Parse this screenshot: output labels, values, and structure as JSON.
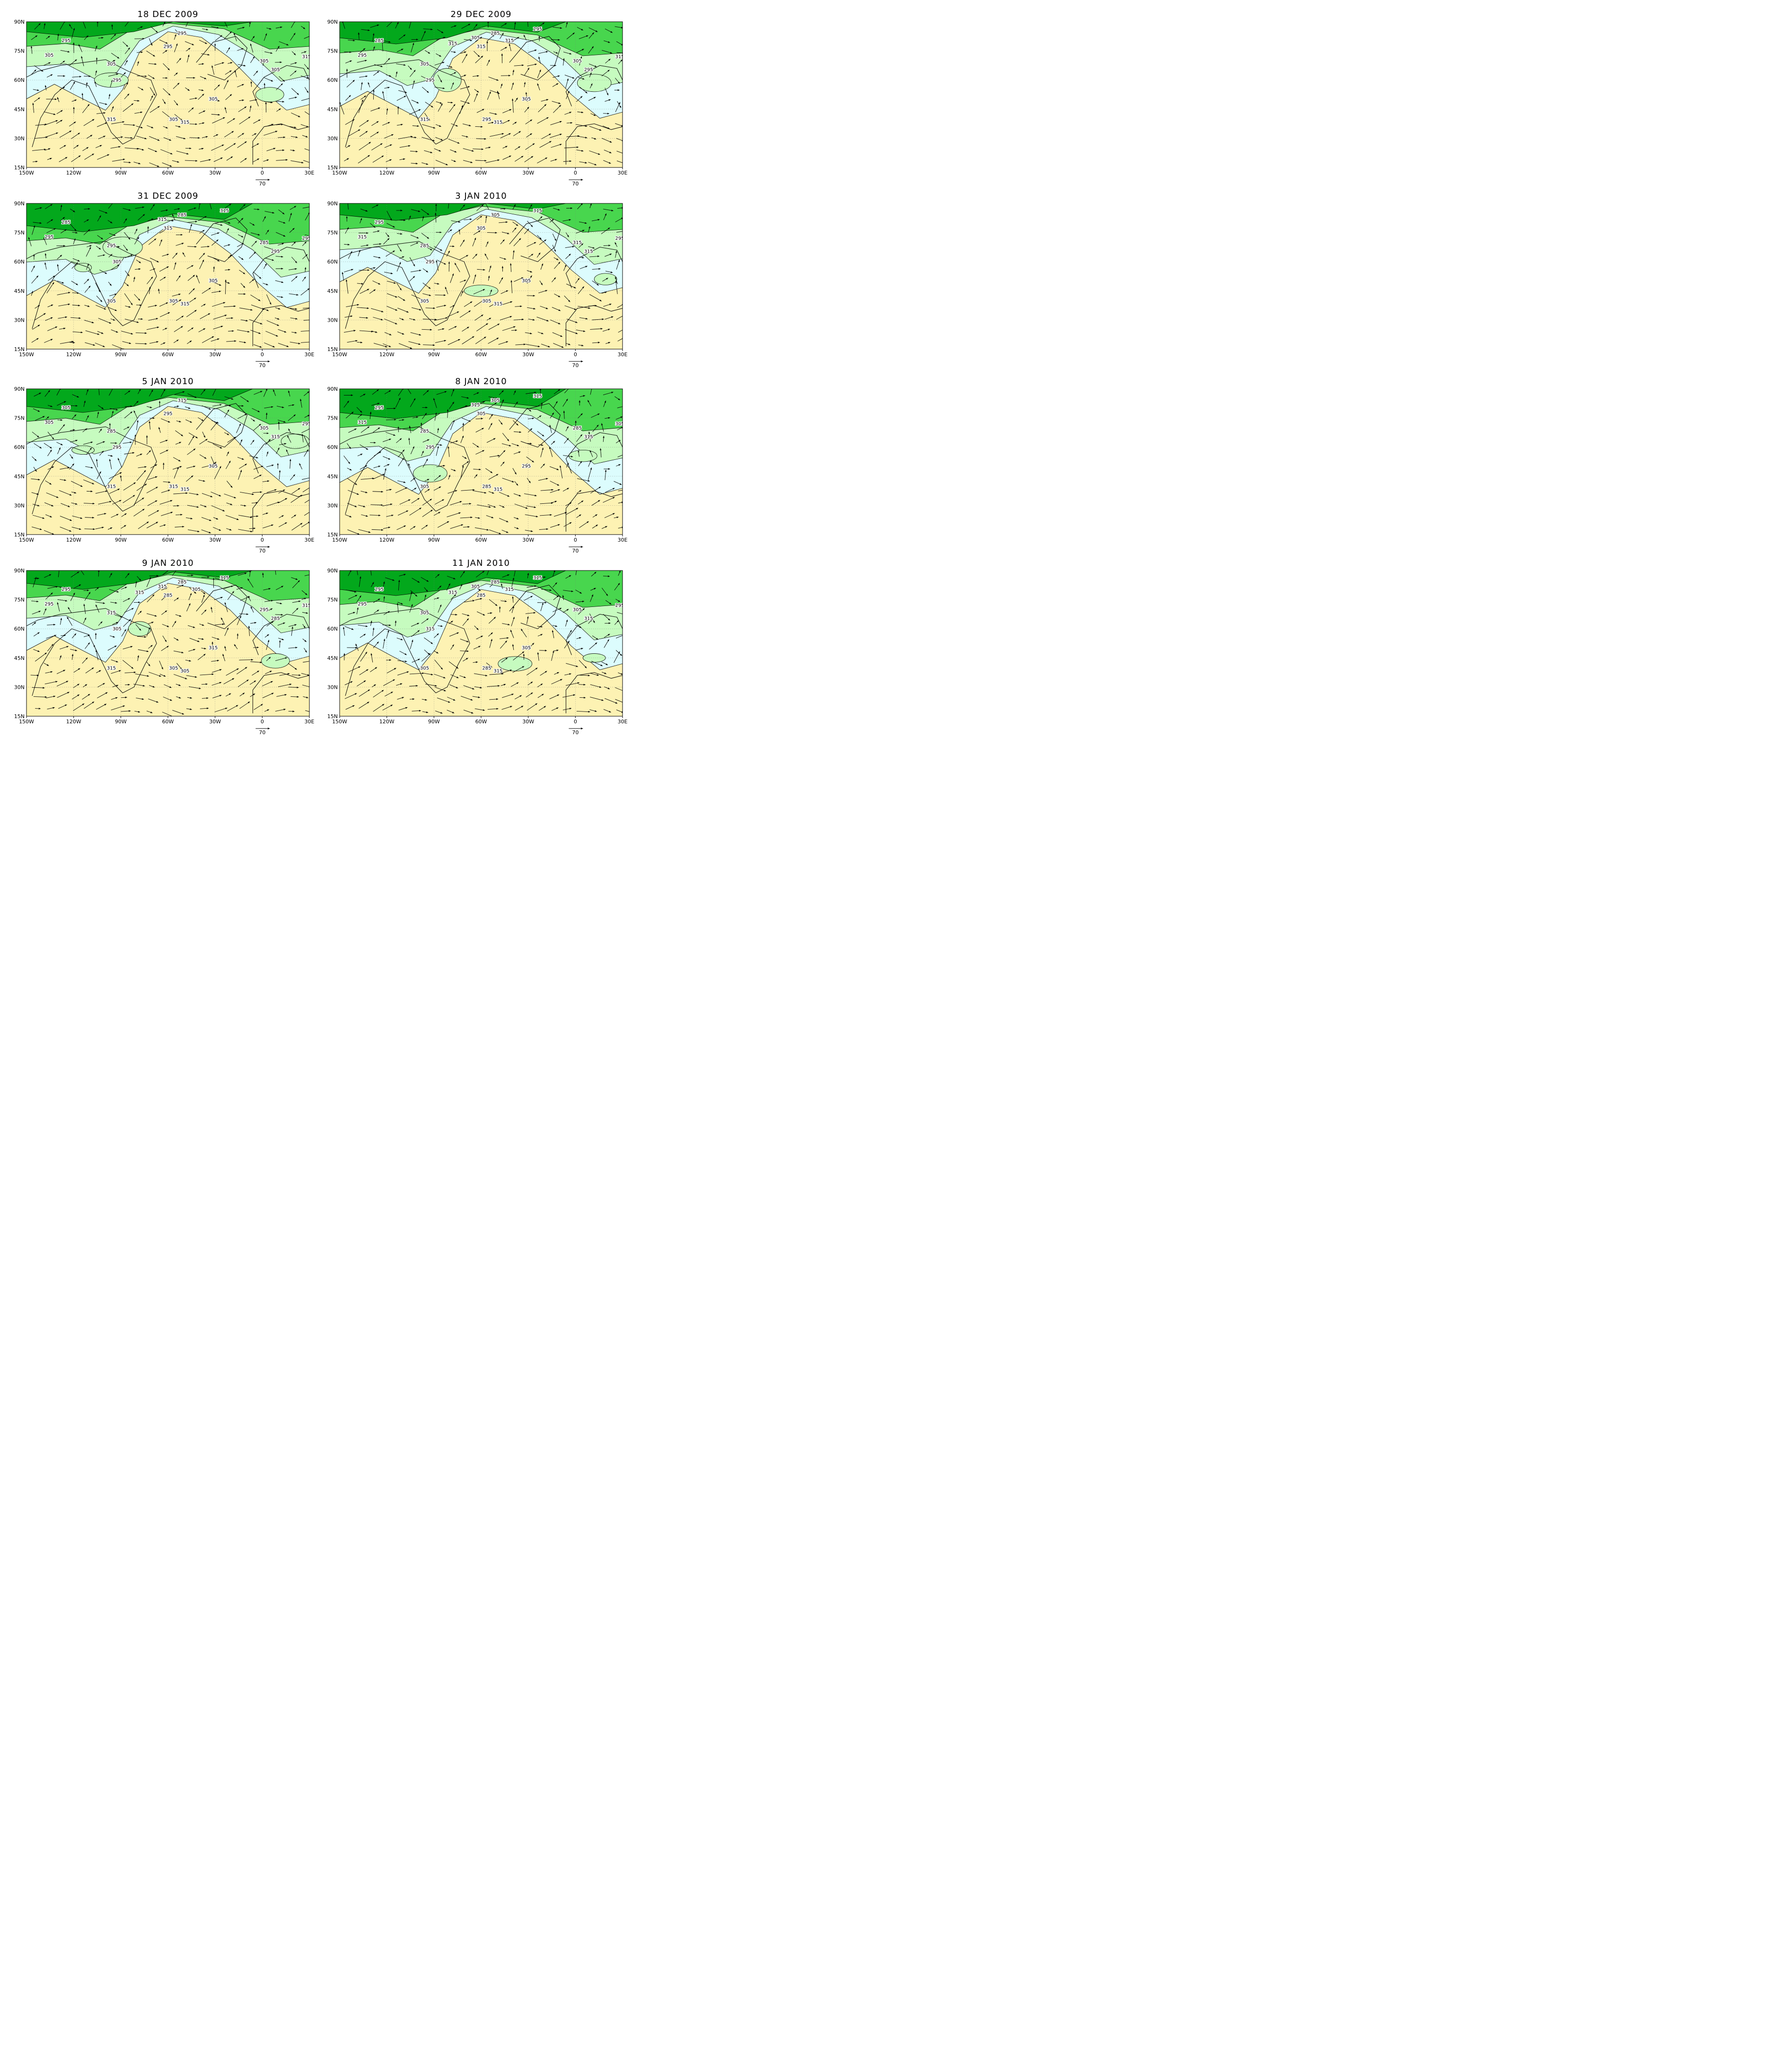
{
  "figure": {
    "colors": {
      "band_gt_315": "#fdf2b3",
      "band_305_315": "#dcfcfd",
      "band_295_305": "#c6fbbf",
      "band_285_295": "#48d64e",
      "band_lt_285": "#03a81c",
      "coast": "#000000",
      "grid": "#777777",
      "vector": "#000000"
    },
    "lon_ticks": [
      "150W",
      "120W",
      "90W",
      "60W",
      "30W",
      "0",
      "30E"
    ],
    "lat_ticks": [
      "90N",
      "75N",
      "60N",
      "45N",
      "30N",
      "15N"
    ],
    "reference_vector_label": "70",
    "panels": [
      {
        "title": "18 DEC 2009",
        "contour_labels": [
          "295",
          "295",
          "305",
          "305",
          "295",
          "295",
          "305",
          "305",
          "305",
          "315",
          "305",
          "315",
          "315"
        ]
      },
      {
        "title": "29 DEC 2009",
        "contour_labels": [
          "285",
          "285",
          "295",
          "305",
          "295",
          "315",
          "305",
          "295",
          "295",
          "315",
          "305",
          "315",
          "315",
          "295",
          "305",
          "315",
          "315"
        ]
      },
      {
        "title": "31 DEC 2009",
        "contour_labels": [
          "285",
          "285",
          "295",
          "295",
          "305",
          "315",
          "285",
          "295",
          "305",
          "295",
          "305",
          "315",
          "305",
          "315",
          "315"
        ]
      },
      {
        "title": "3 JAN 2010",
        "contour_labels": [
          "295",
          "305",
          "315",
          "285",
          "295",
          "305",
          "315",
          "315",
          "305",
          "295",
          "305",
          "315",
          "305",
          "315"
        ]
      },
      {
        "title": "5 JAN 2010",
        "contour_labels": [
          "305",
          "315",
          "305",
          "285",
          "295",
          "295",
          "305",
          "315",
          "315",
          "295",
          "305",
          "315",
          "315"
        ]
      },
      {
        "title": "8 JAN 2010",
        "contour_labels": [
          "295",
          "305",
          "315",
          "285",
          "295",
          "305",
          "285",
          "315",
          "285",
          "305",
          "295",
          "315",
          "305",
          "315",
          "315"
        ]
      },
      {
        "title": "9 JAN 2010",
        "contour_labels": [
          "295",
          "285",
          "295",
          "315",
          "305",
          "285",
          "295",
          "285",
          "305",
          "315",
          "315",
          "305",
          "315",
          "315",
          "315",
          "305",
          "315"
        ]
      },
      {
        "title": "11 JAN 2010",
        "contour_labels": [
          "295",
          "285",
          "295",
          "305",
          "315",
          "285",
          "305",
          "315",
          "285",
          "295",
          "305",
          "315",
          "305",
          "315",
          "305",
          "315",
          "315"
        ]
      }
    ]
  }
}
